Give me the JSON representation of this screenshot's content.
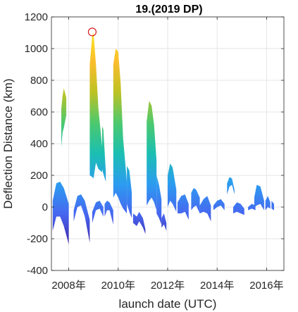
{
  "chart_data": {
    "type": "area",
    "title": "19.(2019 DP)",
    "xlabel": "launch date (UTC)",
    "ylabel": "Deflection Distance (km)",
    "xlim": [
      2007.3,
      2016.7
    ],
    "ylim": [
      -400,
      1200
    ],
    "xticks": [
      2008,
      2010,
      2012,
      2014,
      2016
    ],
    "xtick_labels": [
      "2008年",
      "2010年",
      "2012年",
      "2014年",
      "2016年"
    ],
    "yticks": [
      -400,
      -200,
      0,
      200,
      400,
      600,
      800,
      1000,
      1200
    ],
    "ytick_labels": [
      "-400",
      "-200",
      "0",
      "200",
      "400",
      "600",
      "800",
      "1000",
      "1200"
    ],
    "grid": true,
    "colormap": [
      "#3e26a8",
      "#4766f0",
      "#2c9cf0",
      "#1bbfb1",
      "#4cc96e",
      "#bdc224",
      "#fbbd2e",
      "#f9e61b"
    ],
    "marker": {
      "x": 2008.95,
      "y": 1105,
      "color": "#d7191c",
      "shape": "circle"
    },
    "bands": [
      {
        "x": [
          2007.35,
          2007.5,
          2007.65,
          2007.8,
          2008.0
        ],
        "hi": [
          40,
          150,
          160,
          120,
          20
        ],
        "lo": [
          -150,
          -60,
          -60,
          -120,
          -235
        ]
      },
      {
        "x": [
          2008.2,
          2008.35,
          2008.5,
          2008.65,
          2008.85
        ],
        "hi": [
          -20,
          70,
          80,
          40,
          -80
        ],
        "lo": [
          -90,
          0,
          10,
          -60,
          -225
        ]
      },
      {
        "x": [
          2008.95,
          2009.1,
          2009.25,
          2009.4
        ],
        "hi": [
          -30,
          30,
          40,
          0
        ],
        "lo": [
          -100,
          -20,
          -10,
          -60
        ]
      },
      {
        "x": [
          2009.45,
          2009.55,
          2009.65,
          2009.8
        ],
        "hi": [
          20,
          40,
          30,
          -20
        ],
        "lo": [
          -60,
          -20,
          -20,
          -110
        ]
      },
      {
        "x": [
          2007.7,
          2007.75,
          2007.8,
          2007.9
        ],
        "hi": [
          620,
          700,
          750,
          690
        ],
        "lo": [
          380,
          470,
          500,
          580
        ]
      },
      {
        "x": [
          2008.85,
          2008.95,
          2009.0,
          2009.1,
          2009.2,
          2009.35
        ],
        "hi": [
          900,
          1080,
          1100,
          900,
          620,
          380
        ],
        "lo": [
          200,
          190,
          180,
          280,
          240,
          220
        ]
      },
      {
        "x": [
          2009.35,
          2009.4,
          2009.5
        ],
        "hi": [
          510,
          490,
          220
        ],
        "lo": [
          240,
          210,
          160
        ]
      },
      {
        "x": [
          2009.8,
          2009.9,
          2010.0,
          2010.1,
          2010.2,
          2010.35
        ],
        "hi": [
          900,
          1000,
          980,
          780,
          430,
          160
        ],
        "lo": [
          60,
          90,
          60,
          20,
          -10,
          -40
        ]
      },
      {
        "x": [
          2010.35,
          2010.45,
          2010.55
        ],
        "hi": [
          260,
          230,
          90
        ],
        "lo": [
          20,
          -30,
          -70
        ]
      },
      {
        "x": [
          2010.6,
          2010.75,
          2010.85,
          2011.0,
          2011.1
        ],
        "hi": [
          -40,
          -60,
          -30,
          -70,
          -140
        ],
        "lo": [
          -100,
          -120,
          -90,
          -130,
          -170
        ]
      },
      {
        "x": [
          2011.15,
          2011.25,
          2011.35,
          2011.45,
          2011.55
        ],
        "hi": [
          540,
          670,
          640,
          520,
          290
        ],
        "lo": [
          10,
          40,
          60,
          30,
          -20
        ]
      },
      {
        "x": [
          2011.55,
          2011.65,
          2011.75
        ],
        "hi": [
          200,
          140,
          50
        ],
        "lo": [
          -40,
          -70,
          -110
        ]
      },
      {
        "x": [
          2011.75,
          2011.85,
          2011.95
        ],
        "hi": [
          -70,
          -40,
          -100
        ],
        "lo": [
          -130,
          -110,
          -150
        ]
      },
      {
        "x": [
          2012.0,
          2012.1,
          2012.2,
          2012.35
        ],
        "hi": [
          200,
          275,
          250,
          110
        ],
        "lo": [
          0,
          40,
          20,
          -30
        ]
      },
      {
        "x": [
          2012.4,
          2012.55,
          2012.7,
          2012.85
        ],
        "hi": [
          30,
          70,
          80,
          20
        ],
        "lo": [
          -40,
          -40,
          -30,
          -80
        ]
      },
      {
        "x": [
          2012.95,
          2013.05,
          2013.15,
          2013.3
        ],
        "hi": [
          90,
          120,
          110,
          60
        ],
        "lo": [
          -20,
          0,
          10,
          -40
        ]
      },
      {
        "x": [
          2013.3,
          2013.45,
          2013.6,
          2013.75
        ],
        "hi": [
          10,
          50,
          70,
          10
        ],
        "lo": [
          -40,
          -30,
          -40,
          -90
        ]
      },
      {
        "x": [
          2013.85,
          2014.0,
          2014.15,
          2014.3
        ],
        "hi": [
          10,
          40,
          50,
          20
        ],
        "lo": [
          -20,
          0,
          10,
          -20
        ]
      },
      {
        "x": [
          2014.4,
          2014.5,
          2014.6,
          2014.7
        ],
        "hi": [
          150,
          190,
          180,
          110
        ],
        "lo": [
          80,
          130,
          140,
          80
        ]
      },
      {
        "x": [
          2014.65,
          2014.8,
          2014.95,
          2015.1
        ],
        "hi": [
          0,
          30,
          20,
          -10
        ],
        "lo": [
          -40,
          -30,
          -40,
          -50
        ]
      },
      {
        "x": [
          2015.25,
          2015.4,
          2015.55
        ],
        "hi": [
          0,
          20,
          10
        ],
        "lo": [
          -20,
          -10,
          -20
        ]
      },
      {
        "x": [
          2015.5,
          2015.6,
          2015.75,
          2015.9
        ],
        "hi": [
          60,
          140,
          130,
          40
        ],
        "lo": [
          0,
          10,
          20,
          -20
        ]
      },
      {
        "x": [
          2015.95,
          2016.05,
          2016.15
        ],
        "hi": [
          40,
          70,
          30
        ],
        "lo": [
          -20,
          0,
          -10
        ]
      },
      {
        "x": [
          2016.2,
          2016.3
        ],
        "hi": [
          40,
          20
        ],
        "lo": [
          -10,
          -20
        ]
      }
    ]
  }
}
